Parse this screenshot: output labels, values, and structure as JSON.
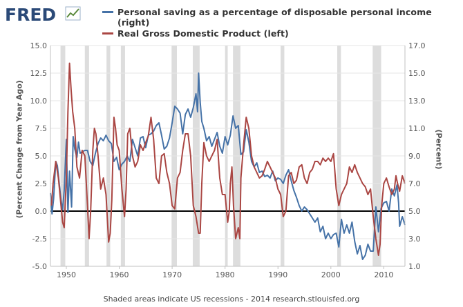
{
  "logo": {
    "text": "FRED"
  },
  "footer": "Shaded areas indicate US recessions - 2014 research.stlouisfed.org",
  "colors": {
    "saving": "#4572a7",
    "gdp": "#aa4643",
    "recession": "#dddddd",
    "zero_line": "#000000"
  },
  "chart_data": {
    "type": "line",
    "x_range": [
      1947,
      2014
    ],
    "x_ticks": [
      1950,
      1960,
      1970,
      1980,
      1990,
      2000,
      2010
    ],
    "left_axis": {
      "label": "(Percent Change from Year Ago)",
      "range": [
        -5,
        15
      ],
      "ticks": [
        "-5.0",
        "-2.5",
        "0.0",
        "2.5",
        "5.0",
        "7.5",
        "10.0",
        "12.5",
        "15.0"
      ]
    },
    "right_axis": {
      "label": "(Percent)",
      "range": [
        1,
        17
      ],
      "ticks": [
        "1.0",
        "3.0",
        "5.0",
        "7.0",
        "9.0",
        "11.0",
        "13.0",
        "15.0",
        "17.0"
      ]
    },
    "recessions": [
      [
        1948.9,
        1949.8
      ],
      [
        1953.5,
        1954.3
      ],
      [
        1957.6,
        1958.3
      ],
      [
        1960.3,
        1961.1
      ],
      [
        1969.9,
        1970.9
      ],
      [
        1973.9,
        1975.2
      ],
      [
        1980.0,
        1980.5
      ],
      [
        1981.5,
        1982.9
      ],
      [
        1990.5,
        1991.2
      ],
      [
        2001.2,
        2001.9
      ],
      [
        2007.9,
        2009.5
      ]
    ],
    "series": [
      {
        "name": "Personal saving as a percentage of disposable personal income (right)",
        "legend_line1": "Personal saving as a percentage of disposable personal income",
        "legend_line2": "(right)",
        "axis": "right",
        "x": [
          1947,
          1947.3,
          1947.6,
          1948,
          1948.3,
          1948.6,
          1949,
          1949.3,
          1949.6,
          1950,
          1950.3,
          1950.6,
          1951,
          1951.3,
          1951.6,
          1952,
          1952.3,
          1952.6,
          1953,
          1953.5,
          1954,
          1954.5,
          1955,
          1955.5,
          1956,
          1956.5,
          1957,
          1957.5,
          1958,
          1958.5,
          1959,
          1959.5,
          1960,
          1960.5,
          1961,
          1961.5,
          1962,
          1962.5,
          1963,
          1963.5,
          1964,
          1964.5,
          1965,
          1965.5,
          1966,
          1966.5,
          1967,
          1967.5,
          1968,
          1968.5,
          1969,
          1969.5,
          1970,
          1970.5,
          1971,
          1971.5,
          1972,
          1972.5,
          1973,
          1973.5,
          1974,
          1974.5,
          1974.8,
          1975,
          1975.3,
          1975.6,
          1976,
          1976.5,
          1977,
          1977.5,
          1978,
          1978.5,
          1979,
          1979.5,
          1980,
          1980.5,
          1981,
          1981.5,
          1982,
          1982.5,
          1983,
          1983.5,
          1984,
          1984.5,
          1985,
          1985.5,
          1986,
          1986.5,
          1987,
          1987.5,
          1988,
          1988.5,
          1989,
          1989.5,
          1990,
          1990.5,
          1991,
          1991.5,
          1992,
          1992.5,
          1993,
          1993.5,
          1994,
          1994.5,
          1995,
          1995.5,
          1996,
          1996.5,
          1997,
          1997.5,
          1998,
          1998.5,
          1999,
          1999.5,
          2000,
          2000.5,
          2001,
          2001.5,
          2002,
          2002.5,
          2003,
          2003.5,
          2004,
          2004.5,
          2005,
          2005.5,
          2006,
          2006.5,
          2007,
          2007.5,
          2008,
          2008.5,
          2009,
          2009.5,
          2010,
          2010.5,
          2011,
          2011.5,
          2012,
          2012.5,
          2012.8,
          2013,
          2013.5,
          2014
        ],
        "values": [
          6.3,
          4.8,
          5.9,
          8.6,
          8.3,
          7.2,
          5.8,
          5.1,
          6.5,
          10.2,
          4.9,
          7.9,
          5.3,
          10.4,
          9.5,
          8.9,
          10.0,
          9.2,
          9.3,
          9.4,
          9.4,
          8.6,
          8.3,
          9.2,
          9.9,
          10.3,
          10.1,
          10.5,
          10.1,
          9.9,
          8.6,
          8.9,
          8.0,
          8.4,
          8.6,
          9.0,
          8.6,
          10.2,
          9.6,
          9.0,
          10.3,
          10.4,
          9.6,
          10.5,
          10.6,
          10.8,
          11.2,
          11.4,
          10.5,
          9.5,
          9.7,
          10.3,
          11.4,
          12.6,
          12.4,
          12.1,
          10.6,
          12.0,
          12.4,
          11.8,
          12.5,
          13.5,
          12.2,
          15.0,
          12.9,
          11.5,
          11.0,
          10.1,
          10.4,
          9.7,
          10.2,
          10.7,
          9.7,
          9.2,
          10.4,
          9.8,
          10.5,
          11.9,
          11.0,
          11.2,
          9.1,
          9.3,
          10.9,
          10.0,
          8.6,
          8.2,
          8.5,
          7.8,
          7.9,
          7.5,
          7.6,
          7.4,
          7.9,
          7.2,
          7.4,
          7.3,
          7.0,
          7.6,
          8.0,
          7.2,
          6.5,
          6.0,
          5.4,
          5.0,
          5.3,
          5.1,
          4.8,
          4.5,
          4.2,
          4.5,
          3.5,
          3.9,
          3.0,
          3.4,
          3.0,
          3.3,
          3.4,
          2.4,
          4.4,
          3.4,
          4.0,
          3.4,
          4.2,
          2.8,
          1.9,
          2.5,
          1.5,
          1.8,
          2.6,
          2.1,
          2.1,
          5.3,
          3.5,
          5.2,
          5.6,
          5.7,
          5.0,
          6.6,
          6.1,
          6.9,
          5.6,
          3.9,
          4.6,
          4.0
        ],
        "color": "#4572a7"
      },
      {
        "name": "Real Gross Domestic Product (left)",
        "legend_line1": "Real Gross Domestic Product (left)",
        "axis": "left",
        "x": [
          1947.2,
          1947.5,
          1948,
          1948.5,
          1949,
          1949.3,
          1949.6,
          1950,
          1950.3,
          1950.6,
          1950.9,
          1951.2,
          1951.6,
          1952,
          1952.5,
          1953,
          1953.5,
          1954,
          1954.3,
          1954.6,
          1955,
          1955.3,
          1955.6,
          1956,
          1956.5,
          1957,
          1957.5,
          1958,
          1958.3,
          1958.6,
          1959,
          1959.3,
          1959.6,
          1960,
          1960.5,
          1961,
          1961.3,
          1961.6,
          1962,
          1962.5,
          1963,
          1963.5,
          1964,
          1964.5,
          1965,
          1965.5,
          1966,
          1966.5,
          1967,
          1967.5,
          1968,
          1968.5,
          1969,
          1969.5,
          1970,
          1970.5,
          1971,
          1971.5,
          1972,
          1972.5,
          1973,
          1973.5,
          1974,
          1974.5,
          1975,
          1975.3,
          1975.6,
          1976,
          1976.5,
          1977,
          1977.5,
          1978,
          1978.5,
          1979,
          1979.5,
          1980,
          1980.5,
          1980.8,
          1981,
          1981.3,
          1981.6,
          1982,
          1982.5,
          1982.8,
          1983,
          1983.5,
          1984,
          1984.5,
          1985,
          1985.5,
          1986,
          1986.5,
          1987,
          1987.5,
          1988,
          1988.5,
          1989,
          1989.5,
          1990,
          1990.5,
          1991,
          1991.5,
          1992,
          1992.5,
          1993,
          1993.5,
          1994,
          1994.5,
          1995,
          1995.5,
          1996,
          1996.5,
          1997,
          1997.5,
          1998,
          1998.5,
          1999,
          1999.5,
          2000,
          2000.5,
          2001,
          2001.5,
          2002,
          2002.5,
          2003,
          2003.5,
          2004,
          2004.5,
          2005,
          2005.5,
          2006,
          2006.5,
          2007,
          2007.5,
          2008,
          2008.5,
          2009,
          2009.3,
          2009.6,
          2010,
          2010.5,
          2011,
          2011.5,
          2012,
          2012.3,
          2012.6,
          2013,
          2013.5,
          2014
        ],
        "values": [
          0.5,
          2.5,
          4.5,
          3.0,
          0.5,
          -1.0,
          -1.5,
          3.0,
          9.0,
          13.4,
          11.0,
          9.0,
          7.5,
          4.0,
          3.0,
          5.5,
          5.0,
          0.5,
          -2.5,
          0.0,
          5.5,
          7.5,
          7.0,
          5.0,
          2.0,
          3.0,
          1.5,
          -2.8,
          -2.0,
          1.0,
          8.5,
          7.5,
          6.0,
          5.5,
          2.0,
          -0.5,
          2.0,
          7.0,
          7.5,
          5.0,
          4.0,
          4.5,
          6.0,
          5.5,
          6.2,
          6.8,
          8.5,
          6.5,
          3.0,
          2.5,
          5.0,
          5.2,
          3.5,
          2.5,
          0.5,
          0.2,
          3.0,
          3.5,
          5.5,
          7.0,
          7.0,
          5.0,
          0.5,
          -0.5,
          -2.0,
          -2.0,
          2.5,
          6.2,
          5.0,
          4.5,
          5.0,
          5.5,
          6.5,
          3.0,
          1.5,
          1.5,
          -1.0,
          0.0,
          2.5,
          4.0,
          0.5,
          -2.5,
          -1.5,
          -2.5,
          3.0,
          6.0,
          8.5,
          7.5,
          5.0,
          4.0,
          3.5,
          3.0,
          3.2,
          3.8,
          4.5,
          4.0,
          3.5,
          3.0,
          2.0,
          1.5,
          -0.5,
          0.0,
          3.2,
          3.5,
          2.5,
          2.8,
          4.0,
          4.2,
          3.0,
          2.5,
          3.5,
          3.8,
          4.5,
          4.5,
          4.2,
          4.8,
          4.5,
          4.8,
          4.5,
          5.2,
          2.0,
          0.5,
          1.5,
          2.0,
          2.5,
          4.0,
          3.5,
          4.2,
          3.5,
          3.0,
          2.5,
          2.2,
          1.5,
          2.0,
          -0.5,
          -2.5,
          -4.0,
          -3.0,
          0.5,
          2.5,
          3.0,
          2.2,
          1.5,
          2.0,
          3.2,
          2.5,
          1.8,
          3.2,
          2.5
        ],
        "color": "#aa4643"
      }
    ]
  }
}
